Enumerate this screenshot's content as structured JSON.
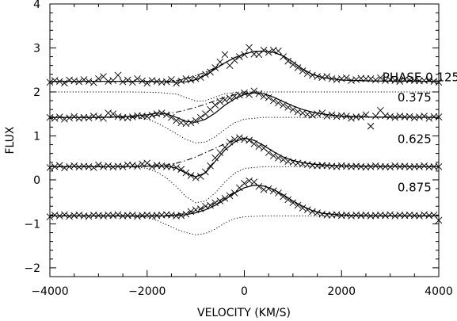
{
  "chart_data": {
    "type": "line",
    "title": "",
    "xlabel": "VELOCITY (KM/S)",
    "ylabel": "FLUX",
    "xlim": [
      -4000,
      4000
    ],
    "ylim": [
      -2.2,
      4.0
    ],
    "x_ticks": [
      -4000,
      -2000,
      0,
      2000,
      4000
    ],
    "x_tick_labels": [
      "−4000",
      "−2000",
      "0",
      "2000",
      "4000"
    ],
    "y_ticks": [
      -2,
      -1,
      0,
      1,
      2,
      3,
      4
    ],
    "y_tick_labels": [
      "−2",
      "−1",
      "0",
      "1",
      "2",
      "3",
      "4"
    ],
    "grid": false,
    "legend": "none",
    "annotations": [
      {
        "text": "PHASE 0.125",
        "x": 2840,
        "y": 2.24
      },
      {
        "text": "0.375",
        "x": 3150,
        "y": 1.78
      },
      {
        "text": "0.625",
        "x": 3150,
        "y": 0.84
      },
      {
        "text": "0.875",
        "x": 3150,
        "y": -0.26
      }
    ],
    "phases": [
      {
        "phase": "0.125",
        "continuum": 2.24,
        "observed_x": [
          -4000,
          -3900,
          -3800,
          -3700,
          -3600,
          -3500,
          -3400,
          -3300,
          -3200,
          -3100,
          -3000,
          -2900,
          -2800,
          -2700,
          -2600,
          -2500,
          -2400,
          -2300,
          -2200,
          -2100,
          -2000,
          -1900,
          -1800,
          -1700,
          -1600,
          -1500,
          -1400,
          -1300,
          -1200,
          -1100,
          -1000,
          -900,
          -800,
          -700,
          -600,
          -500,
          -400,
          -300,
          -200,
          -100,
          0,
          100,
          200,
          300,
          400,
          500,
          600,
          700,
          800,
          900,
          1000,
          1100,
          1200,
          1300,
          1400,
          1500,
          1600,
          1700,
          1800,
          1900,
          2000,
          2100,
          2200,
          2300,
          2400,
          2500,
          2600,
          2700,
          2800,
          2900,
          3000,
          3100,
          3200,
          3300,
          3400,
          3500,
          3600,
          3700,
          3800,
          3900,
          4000
        ],
        "observed_y": [
          2.22,
          2.26,
          2.24,
          2.2,
          2.27,
          2.25,
          2.23,
          2.28,
          2.24,
          2.21,
          2.3,
          2.35,
          2.24,
          2.26,
          2.38,
          2.23,
          2.27,
          2.22,
          2.3,
          2.25,
          2.2,
          2.26,
          2.24,
          2.22,
          2.23,
          2.28,
          2.2,
          2.25,
          2.3,
          2.27,
          2.3,
          2.33,
          2.4,
          2.45,
          2.55,
          2.68,
          2.85,
          2.6,
          2.72,
          2.8,
          2.85,
          3.01,
          2.86,
          2.85,
          2.95,
          2.9,
          2.95,
          2.93,
          2.8,
          2.7,
          2.62,
          2.55,
          2.48,
          2.42,
          2.38,
          2.35,
          2.33,
          2.35,
          2.3,
          2.28,
          2.3,
          2.32,
          2.26,
          2.28,
          2.31,
          2.3,
          2.3,
          2.27,
          2.32,
          2.26,
          2.28,
          2.26,
          2.24,
          2.28,
          2.27,
          2.26,
          2.25,
          2.26,
          2.27,
          2.24,
          2.22
        ],
        "model_x": [
          -4000,
          -2600,
          -2000,
          -1600,
          -1400,
          -1200,
          -1000,
          -800,
          -600,
          -400,
          -200,
          0,
          200,
          400,
          600,
          800,
          1000,
          1200,
          1400,
          1600,
          2000,
          2600,
          4000
        ],
        "model_y": [
          2.24,
          2.24,
          2.24,
          2.23,
          2.22,
          2.23,
          2.28,
          2.38,
          2.52,
          2.66,
          2.78,
          2.86,
          2.92,
          2.93,
          2.9,
          2.82,
          2.68,
          2.52,
          2.4,
          2.33,
          2.27,
          2.25,
          2.24
        ],
        "emission_y": [
          2.24,
          2.24,
          2.24,
          2.24,
          2.26,
          2.3,
          2.37,
          2.45,
          2.55,
          2.66,
          2.78,
          2.86,
          2.92,
          2.93,
          2.9,
          2.82,
          2.68,
          2.52,
          2.4,
          2.33,
          2.27,
          2.25,
          2.24
        ],
        "absorption_x": [
          -4000,
          -2400,
          -1800,
          -1400,
          -1200,
          -1000,
          -800,
          -600,
          -400,
          -200,
          0,
          400,
          800,
          2000,
          4000
        ],
        "absorption_y": [
          2.0,
          2.0,
          1.99,
          1.95,
          1.87,
          1.79,
          1.8,
          1.88,
          1.96,
          1.99,
          2.0,
          2.0,
          2.0,
          2.0,
          2.0
        ]
      },
      {
        "phase": "0.375",
        "continuum": 1.42,
        "observed_x": [
          -4000,
          -3900,
          -3800,
          -3700,
          -3600,
          -3500,
          -3400,
          -3300,
          -3200,
          -3100,
          -3000,
          -2900,
          -2800,
          -2700,
          -2600,
          -2500,
          -2400,
          -2300,
          -2200,
          -2100,
          -2000,
          -1900,
          -1800,
          -1700,
          -1600,
          -1500,
          -1400,
          -1300,
          -1200,
          -1100,
          -1000,
          -900,
          -800,
          -700,
          -600,
          -500,
          -400,
          -300,
          -200,
          -100,
          0,
          100,
          200,
          300,
          400,
          500,
          600,
          700,
          800,
          900,
          1000,
          1100,
          1200,
          1300,
          1400,
          1500,
          1600,
          1700,
          1800,
          1900,
          2000,
          2100,
          2200,
          2300,
          2400,
          2500,
          2600,
          2700,
          2800,
          2900,
          3000,
          3100,
          3200,
          3300,
          3400,
          3500,
          3600,
          3700,
          3800,
          3900,
          4000
        ],
        "observed_y": [
          1.42,
          1.4,
          1.43,
          1.38,
          1.41,
          1.44,
          1.4,
          1.42,
          1.41,
          1.45,
          1.43,
          1.4,
          1.52,
          1.5,
          1.44,
          1.42,
          1.41,
          1.43,
          1.46,
          1.45,
          1.44,
          1.47,
          1.5,
          1.52,
          1.48,
          1.42,
          1.35,
          1.3,
          1.28,
          1.3,
          1.35,
          1.42,
          1.5,
          1.6,
          1.7,
          1.78,
          1.82,
          1.86,
          1.9,
          1.93,
          1.98,
          1.94,
          2.02,
          1.96,
          1.9,
          1.87,
          1.8,
          1.75,
          1.7,
          1.65,
          1.6,
          1.55,
          1.52,
          1.49,
          1.47,
          1.5,
          1.52,
          1.45,
          1.48,
          1.44,
          1.46,
          1.45,
          1.4,
          1.43,
          1.43,
          1.48,
          1.22,
          1.45,
          1.58,
          1.46,
          1.44,
          1.42,
          1.45,
          1.43,
          1.44,
          1.41,
          1.43,
          1.45,
          1.4,
          1.44,
          1.43
        ],
        "model_x": [
          -4000,
          -3000,
          -2400,
          -2000,
          -1800,
          -1600,
          -1400,
          -1200,
          -1000,
          -800,
          -600,
          -400,
          -200,
          0,
          200,
          400,
          600,
          800,
          1000,
          1200,
          1400,
          1600,
          1800,
          2000,
          2600,
          4000
        ],
        "model_y": [
          1.42,
          1.42,
          1.44,
          1.48,
          1.52,
          1.5,
          1.42,
          1.33,
          1.31,
          1.38,
          1.52,
          1.7,
          1.84,
          1.94,
          1.98,
          1.96,
          1.88,
          1.78,
          1.68,
          1.6,
          1.54,
          1.5,
          1.47,
          1.45,
          1.43,
          1.42
        ],
        "emission_y": [
          1.42,
          1.42,
          1.42,
          1.44,
          1.47,
          1.5,
          1.54,
          1.59,
          1.65,
          1.72,
          1.8,
          1.88,
          1.94,
          1.97,
          1.98,
          1.96,
          1.88,
          1.78,
          1.68,
          1.6,
          1.54,
          1.5,
          1.47,
          1.45,
          1.43,
          1.42
        ],
        "absorption_x": [
          -4000,
          -2600,
          -2200,
          -2000,
          -1800,
          -1600,
          -1400,
          -1200,
          -1000,
          -800,
          -600,
          -400,
          -200,
          0,
          400,
          1000,
          2000,
          4000
        ],
        "absorption_y": [
          1.42,
          1.42,
          1.41,
          1.38,
          1.3,
          1.18,
          1.05,
          0.92,
          0.84,
          0.86,
          0.98,
          1.15,
          1.3,
          1.38,
          1.42,
          1.42,
          1.42,
          1.42
        ]
      },
      {
        "phase": "0.625",
        "continuum": 0.3,
        "observed_x": [
          -4000,
          -3900,
          -3800,
          -3700,
          -3600,
          -3500,
          -3400,
          -3300,
          -3200,
          -3100,
          -3000,
          -2900,
          -2800,
          -2700,
          -2600,
          -2500,
          -2400,
          -2300,
          -2200,
          -2100,
          -2000,
          -1900,
          -1800,
          -1700,
          -1600,
          -1500,
          -1400,
          -1300,
          -1200,
          -1100,
          -1000,
          -900,
          -800,
          -700,
          -600,
          -500,
          -400,
          -300,
          -200,
          -100,
          0,
          100,
          200,
          300,
          400,
          500,
          600,
          700,
          800,
          900,
          1000,
          1100,
          1200,
          1300,
          1400,
          1500,
          1600,
          1700,
          1800,
          1900,
          2000,
          2100,
          2200,
          2300,
          2400,
          2500,
          2600,
          2700,
          2800,
          2900,
          3000,
          3100,
          3200,
          3300,
          3400,
          3500,
          3600,
          3700,
          3800,
          3900,
          4000
        ],
        "observed_y": [
          0.28,
          0.3,
          0.33,
          0.27,
          0.3,
          0.32,
          0.29,
          0.31,
          0.3,
          0.28,
          0.34,
          0.3,
          0.32,
          0.29,
          0.31,
          0.3,
          0.34,
          0.33,
          0.31,
          0.36,
          0.38,
          0.3,
          0.33,
          0.32,
          0.3,
          0.3,
          0.28,
          0.24,
          0.16,
          0.1,
          0.05,
          0.08,
          0.18,
          0.32,
          0.5,
          0.62,
          0.74,
          0.86,
          0.92,
          0.96,
          0.92,
          0.9,
          0.82,
          0.76,
          0.72,
          0.62,
          0.55,
          0.5,
          0.46,
          0.42,
          0.4,
          0.38,
          0.36,
          0.35,
          0.33,
          0.32,
          0.33,
          0.32,
          0.31,
          0.3,
          0.32,
          0.31,
          0.3,
          0.31,
          0.3,
          0.29,
          0.3,
          0.32,
          0.3,
          0.3,
          0.29,
          0.32,
          0.3,
          0.31,
          0.29,
          0.3,
          0.3,
          0.32,
          0.29,
          0.3,
          0.3
        ],
        "model_x": [
          -4000,
          -2600,
          -2000,
          -1600,
          -1400,
          -1200,
          -1000,
          -800,
          -600,
          -400,
          -200,
          0,
          200,
          400,
          600,
          800,
          1000,
          1200,
          1400,
          1600,
          2000,
          2600,
          4000
        ],
        "model_y": [
          0.3,
          0.3,
          0.31,
          0.31,
          0.27,
          0.15,
          0.07,
          0.16,
          0.42,
          0.68,
          0.86,
          0.95,
          0.9,
          0.78,
          0.64,
          0.52,
          0.44,
          0.39,
          0.36,
          0.34,
          0.32,
          0.31,
          0.3
        ],
        "emission_y": [
          0.3,
          0.3,
          0.31,
          0.34,
          0.38,
          0.44,
          0.52,
          0.62,
          0.72,
          0.82,
          0.9,
          0.95,
          0.9,
          0.78,
          0.64,
          0.52,
          0.44,
          0.39,
          0.36,
          0.34,
          0.32,
          0.31,
          0.3
        ],
        "absorption_x": [
          -4000,
          -2600,
          -2200,
          -2000,
          -1800,
          -1600,
          -1400,
          -1200,
          -1000,
          -800,
          -600,
          -400,
          -200,
          0,
          400,
          1000,
          2000,
          4000
        ],
        "absorption_y": [
          0.3,
          0.3,
          0.29,
          0.26,
          0.18,
          0.04,
          -0.15,
          -0.38,
          -0.52,
          -0.48,
          -0.3,
          -0.05,
          0.15,
          0.26,
          0.3,
          0.3,
          0.3,
          0.3
        ]
      },
      {
        "phase": "0.875",
        "continuum": -0.82,
        "observed_x": [
          -4000,
          -3900,
          -3800,
          -3700,
          -3600,
          -3500,
          -3400,
          -3300,
          -3200,
          -3100,
          -3000,
          -2900,
          -2800,
          -2700,
          -2600,
          -2500,
          -2400,
          -2300,
          -2200,
          -2100,
          -2000,
          -1900,
          -1800,
          -1700,
          -1600,
          -1500,
          -1400,
          -1300,
          -1200,
          -1100,
          -1000,
          -900,
          -800,
          -700,
          -600,
          -500,
          -400,
          -300,
          -200,
          -100,
          0,
          100,
          200,
          300,
          400,
          500,
          600,
          700,
          800,
          900,
          1000,
          1100,
          1200,
          1300,
          1400,
          1500,
          1600,
          1700,
          1800,
          1900,
          2000,
          2100,
          2200,
          2300,
          2400,
          2500,
          2600,
          2700,
          2800,
          2900,
          3000,
          3100,
          3200,
          3300,
          3400,
          3500,
          3600,
          3700,
          3800,
          3900,
          4000
        ],
        "observed_y": [
          -0.84,
          -0.8,
          -0.82,
          -0.79,
          -0.83,
          -0.81,
          -0.8,
          -0.82,
          -0.83,
          -0.8,
          -0.81,
          -0.82,
          -0.8,
          -0.81,
          -0.79,
          -0.82,
          -0.81,
          -0.8,
          -0.83,
          -0.81,
          -0.8,
          -0.82,
          -0.81,
          -0.8,
          -0.79,
          -0.8,
          -0.82,
          -0.81,
          -0.78,
          -0.72,
          -0.68,
          -0.66,
          -0.6,
          -0.58,
          -0.52,
          -0.48,
          -0.42,
          -0.36,
          -0.3,
          -0.18,
          -0.08,
          -0.02,
          -0.05,
          -0.15,
          -0.22,
          -0.2,
          -0.25,
          -0.3,
          -0.38,
          -0.45,
          -0.52,
          -0.58,
          -0.64,
          -0.68,
          -0.72,
          -0.75,
          -0.78,
          -0.8,
          -0.8,
          -0.79,
          -0.81,
          -0.8,
          -0.82,
          -0.8,
          -0.81,
          -0.8,
          -0.82,
          -0.81,
          -0.8,
          -0.81,
          -0.79,
          -0.82,
          -0.8,
          -0.81,
          -0.8,
          -0.81,
          -0.82,
          -0.79,
          -0.81,
          -0.8,
          -0.92
        ],
        "model_x": [
          -4000,
          -2600,
          -2000,
          -1600,
          -1400,
          -1200,
          -1000,
          -800,
          -600,
          -400,
          -200,
          0,
          200,
          400,
          600,
          800,
          1000,
          1200,
          1400,
          1600,
          2000,
          2600,
          4000
        ],
        "model_y": [
          -0.82,
          -0.82,
          -0.82,
          -0.82,
          -0.81,
          -0.79,
          -0.75,
          -0.68,
          -0.58,
          -0.45,
          -0.3,
          -0.18,
          -0.12,
          -0.14,
          -0.22,
          -0.34,
          -0.48,
          -0.6,
          -0.7,
          -0.76,
          -0.8,
          -0.82,
          -0.82
        ],
        "emission_y": [
          -0.82,
          -0.82,
          -0.82,
          -0.81,
          -0.79,
          -0.75,
          -0.7,
          -0.62,
          -0.52,
          -0.4,
          -0.28,
          -0.18,
          -0.12,
          -0.14,
          -0.22,
          -0.34,
          -0.48,
          -0.6,
          -0.7,
          -0.76,
          -0.8,
          -0.82,
          -0.82
        ],
        "absorption_x": [
          -4000,
          -2600,
          -2200,
          -2000,
          -1800,
          -1600,
          -1400,
          -1200,
          -1000,
          -800,
          -600,
          -400,
          -200,
          0,
          400,
          1000,
          2000,
          4000
        ],
        "absorption_y": [
          -0.82,
          -0.82,
          -0.83,
          -0.85,
          -0.92,
          -1.02,
          -1.12,
          -1.2,
          -1.25,
          -1.22,
          -1.12,
          -0.98,
          -0.88,
          -0.84,
          -0.82,
          -0.82,
          -0.82,
          -0.82
        ]
      }
    ]
  }
}
